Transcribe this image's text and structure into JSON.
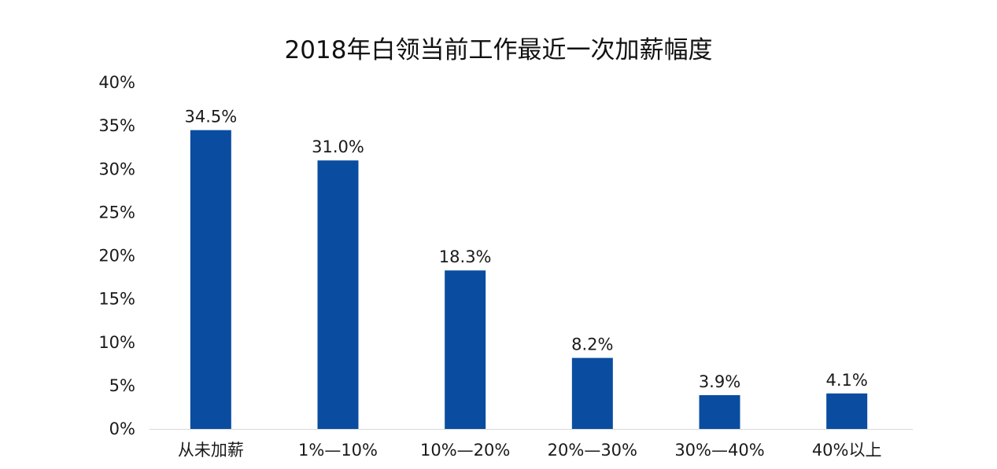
{
  "chart_data": {
    "type": "bar",
    "title": "2018年白领当前工作最近一次加薪幅度",
    "xlabel": "",
    "ylabel": "",
    "categories": [
      "从未加薪",
      "1%—10%",
      "10%—20%",
      "20%—30%",
      "30%—40%",
      "40%以上"
    ],
    "values": [
      34.5,
      31.0,
      18.3,
      8.2,
      3.9,
      4.1
    ],
    "value_labels": [
      "34.5%",
      "31.0%",
      "18.3%",
      "8.2%",
      "3.9%",
      "4.1%"
    ],
    "ylim": [
      0,
      40
    ],
    "yticks": [
      0,
      5,
      10,
      15,
      20,
      25,
      30,
      35,
      40
    ],
    "ytick_labels": [
      "0%",
      "5%",
      "10%",
      "15%",
      "20%",
      "25%",
      "30%",
      "35%",
      "40%"
    ],
    "grid": false,
    "legend": "none",
    "colors": {
      "bar": "#0a4da0",
      "axis": "#d9d9d9",
      "text": "#1a1a1a"
    }
  }
}
